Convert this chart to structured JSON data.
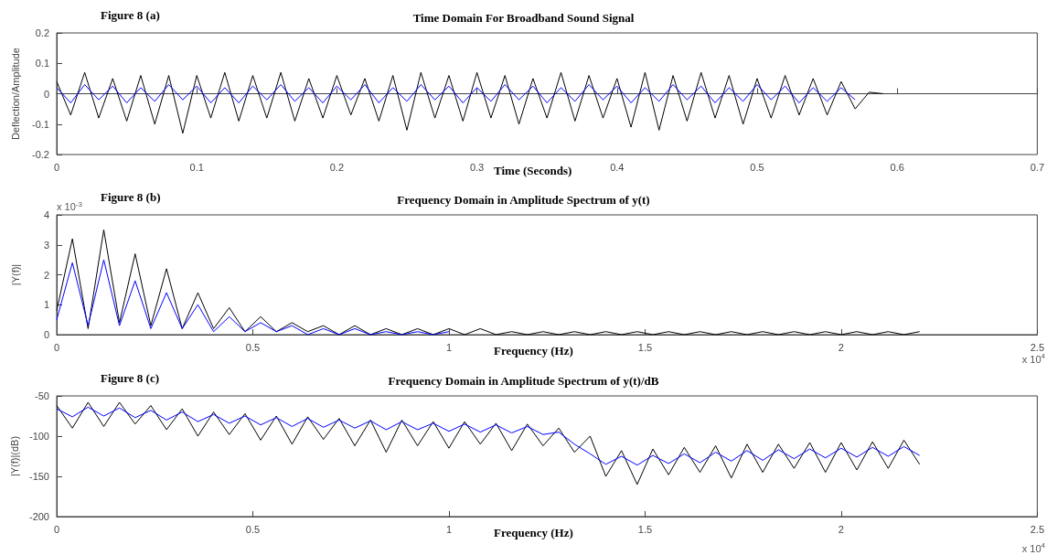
{
  "chart_data": [
    {
      "type": "line",
      "title": "Time Domain For Broadband Sound Signal",
      "subtitle": "Figure 8 (a)",
      "xlabel": "Time (Seconds)",
      "ylabel": "Deflection/Amplitude",
      "x": [
        0,
        0.01,
        0.02,
        0.03,
        0.04,
        0.05,
        0.06,
        0.07,
        0.08,
        0.09,
        0.1,
        0.11,
        0.12,
        0.13,
        0.14,
        0.15,
        0.16,
        0.17,
        0.18,
        0.19,
        0.2,
        0.21,
        0.22,
        0.23,
        0.24,
        0.25,
        0.26,
        0.27,
        0.28,
        0.29,
        0.3,
        0.31,
        0.32,
        0.33,
        0.34,
        0.35,
        0.36,
        0.37,
        0.38,
        0.39,
        0.4,
        0.41,
        0.42,
        0.43,
        0.44,
        0.45,
        0.46,
        0.47,
        0.48,
        0.49,
        0.5,
        0.51,
        0.52,
        0.53,
        0.54,
        0.55,
        0.56,
        0.57,
        0.58,
        0.59
      ],
      "xlim": [
        0,
        0.7
      ],
      "xticks": [
        0,
        0.1,
        0.2,
        0.3,
        0.4,
        0.5,
        0.6,
        0.7
      ],
      "ylim": [
        -0.2,
        0.2
      ],
      "yticks": [
        -0.2,
        -0.1,
        0,
        0.1,
        0.2
      ],
      "series": [
        {
          "color": "#000000",
          "values": [
            0.04,
            -0.07,
            0.07,
            -0.08,
            0.05,
            -0.09,
            0.06,
            -0.1,
            0.06,
            -0.13,
            0.06,
            -0.08,
            0.07,
            -0.09,
            0.06,
            -0.08,
            0.07,
            -0.09,
            0.05,
            -0.08,
            0.06,
            -0.07,
            0.05,
            -0.09,
            0.06,
            -0.12,
            0.07,
            -0.08,
            0.06,
            -0.09,
            0.07,
            -0.08,
            0.06,
            -0.1,
            0.05,
            -0.08,
            0.07,
            -0.09,
            0.06,
            -0.08,
            0.05,
            -0.11,
            0.07,
            -0.12,
            0.06,
            -0.09,
            0.07,
            -0.08,
            0.06,
            -0.1,
            0.05,
            -0.08,
            0.06,
            -0.07,
            0.05,
            -0.07,
            0.04,
            -0.05,
            0.005,
            0
          ]
        },
        {
          "color": "#0000ff",
          "values": [
            0.02,
            -0.03,
            0.03,
            -0.02,
            0.025,
            -0.03,
            0.02,
            -0.025,
            0.03,
            -0.02,
            0.025,
            -0.03,
            0.02,
            -0.03,
            0.025,
            -0.02,
            0.03,
            -0.025,
            0.02,
            -0.03,
            0.025,
            -0.02,
            0.03,
            -0.03,
            0.02,
            -0.025,
            0.03,
            -0.02,
            0.025,
            -0.03,
            0.02,
            -0.025,
            0.03,
            -0.02,
            0.025,
            -0.03,
            0.02,
            -0.025,
            0.03,
            -0.02,
            0.025,
            -0.03,
            0.02,
            -0.025,
            0.03,
            -0.02,
            0.025,
            -0.03,
            0.02,
            -0.025,
            0.03,
            -0.02,
            0.025,
            -0.03,
            0.02,
            -0.025,
            0.02,
            -0.02,
            null,
            null
          ]
        }
      ]
    },
    {
      "type": "line",
      "title": "Frequency Domain in Amplitude Spectrum of y(t)",
      "subtitle": "Figure 8 (b)",
      "xlabel": "Frequency (Hz)",
      "ylabel": "|Y(f)|",
      "annotations": [
        "x 10$^{-3}$",
        "x 10$^{4}$"
      ],
      "x": [
        0,
        0.04,
        0.08,
        0.12,
        0.16,
        0.2,
        0.24,
        0.28,
        0.32,
        0.36,
        0.4,
        0.44,
        0.48,
        0.52,
        0.56,
        0.6,
        0.64,
        0.68,
        0.72,
        0.76,
        0.8,
        0.84,
        0.88,
        0.92,
        0.96,
        1,
        1.04,
        1.08,
        1.12,
        1.16,
        1.2,
        1.24,
        1.28,
        1.32,
        1.36,
        1.4,
        1.44,
        1.48,
        1.52,
        1.56,
        1.6,
        1.64,
        1.68,
        1.72,
        1.76,
        1.8,
        1.84,
        1.88,
        1.92,
        1.96,
        2,
        2.04,
        2.08,
        2.12,
        2.16,
        2.2
      ],
      "xlim": [
        0,
        2.5
      ],
      "xticks": [
        0,
        0.5,
        1,
        1.5,
        2,
        2.5
      ],
      "ylim": [
        0,
        4
      ],
      "yticks": [
        0,
        1,
        2,
        3,
        4
      ],
      "series": [
        {
          "color": "#000000",
          "values": [
            0.8,
            3.2,
            0.2,
            3.5,
            0.4,
            2.7,
            0.3,
            2.2,
            0.2,
            1.4,
            0.2,
            0.9,
            0.1,
            0.6,
            0.1,
            0.4,
            0.1,
            0.3,
            0,
            0.3,
            0,
            0.2,
            0,
            0.2,
            0,
            0.2,
            0,
            0.2,
            0,
            0.1,
            0,
            0.1,
            0,
            0.1,
            0,
            0.1,
            0,
            0.1,
            0,
            0.1,
            0,
            0.1,
            0,
            0.1,
            0,
            0.1,
            0,
            0.1,
            0,
            0.1,
            0,
            0.1,
            0,
            0.1,
            0,
            0.1
          ]
        },
        {
          "color": "#0000ff",
          "values": [
            0.5,
            2.4,
            0.3,
            2.5,
            0.3,
            1.8,
            0.2,
            1.4,
            0.2,
            1,
            0.1,
            0.6,
            0.1,
            0.4,
            0.1,
            0.3,
            0,
            0.2,
            0,
            0.2,
            0,
            0.1,
            0,
            0.1,
            0,
            0.1,
            null,
            null,
            null,
            null,
            null,
            null,
            null,
            null,
            null,
            null,
            null,
            null,
            null,
            null,
            null,
            null,
            null,
            null,
            null,
            null,
            null,
            null,
            null,
            null,
            null,
            null,
            null,
            null,
            null,
            null
          ]
        }
      ]
    },
    {
      "type": "line",
      "title": "Frequency Domain in Amplitude Spectrum of y(t)/dB",
      "subtitle": "Figure 8 (c)",
      "xlabel": "Frequency (Hz)",
      "ylabel": "|Y(f)|(dB)",
      "annotations": [
        "x 10$^{4}$"
      ],
      "x": [
        0,
        0.04,
        0.08,
        0.12,
        0.16,
        0.2,
        0.24,
        0.28,
        0.32,
        0.36,
        0.4,
        0.44,
        0.48,
        0.52,
        0.56,
        0.6,
        0.64,
        0.68,
        0.72,
        0.76,
        0.8,
        0.84,
        0.88,
        0.92,
        0.96,
        1,
        1.04,
        1.08,
        1.12,
        1.16,
        1.2,
        1.24,
        1.28,
        1.32,
        1.36,
        1.4,
        1.44,
        1.48,
        1.52,
        1.56,
        1.6,
        1.64,
        1.68,
        1.72,
        1.76,
        1.8,
        1.84,
        1.88,
        1.92,
        1.96,
        2,
        2.04,
        2.08,
        2.12,
        2.16,
        2.2
      ],
      "xlim": [
        0,
        2.5
      ],
      "xticks": [
        0,
        0.5,
        1,
        1.5,
        2,
        2.5
      ],
      "ylim": [
        -200,
        -50
      ],
      "yticks": [
        -200,
        -150,
        -100,
        -50
      ],
      "series": [
        {
          "color": "#000000",
          "values": [
            -62,
            -90,
            -58,
            -88,
            -58,
            -85,
            -62,
            -92,
            -66,
            -100,
            -70,
            -98,
            -72,
            -105,
            -75,
            -110,
            -76,
            -104,
            -78,
            -112,
            -80,
            -120,
            -80,
            -112,
            -82,
            -115,
            -82,
            -110,
            -84,
            -118,
            -85,
            -112,
            -90,
            -120,
            -100,
            -150,
            -118,
            -160,
            -116,
            -148,
            -114,
            -145,
            -112,
            -152,
            -110,
            -145,
            -110,
            -140,
            -108,
            -145,
            -108,
            -142,
            -107,
            -140,
            -105,
            -135
          ]
        },
        {
          "color": "#0000ff",
          "values": [
            -66,
            -76,
            -64,
            -75,
            -65,
            -77,
            -68,
            -80,
            -70,
            -82,
            -73,
            -84,
            -75,
            -86,
            -77,
            -88,
            -78,
            -89,
            -80,
            -90,
            -81,
            -92,
            -82,
            -92,
            -84,
            -94,
            -85,
            -95,
            -86,
            -96,
            -88,
            -98,
            -95,
            -110,
            -122,
            -135,
            -125,
            -136,
            -124,
            -134,
            -122,
            -133,
            -120,
            -131,
            -118,
            -130,
            -117,
            -128,
            -116,
            -127,
            -115,
            -126,
            -114,
            -125,
            -113,
            -124
          ]
        }
      ]
    }
  ]
}
